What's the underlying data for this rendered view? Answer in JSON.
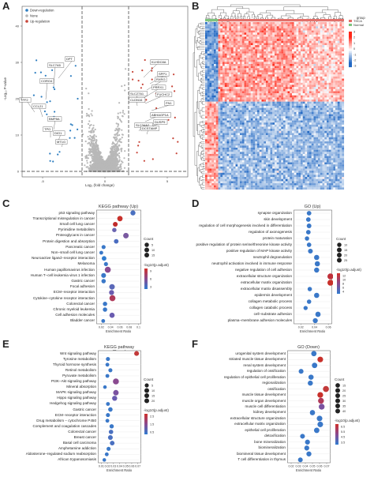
{
  "panels": {
    "A": {
      "label": "A"
    },
    "B": {
      "label": "B"
    },
    "C": {
      "label": "C"
    },
    "D": {
      "label": "D"
    },
    "E": {
      "label": "E"
    },
    "F": {
      "label": "F"
    }
  },
  "volcano": {
    "legend": [
      "Down-regulation",
      "None",
      "Up-regulation"
    ],
    "ylabel": "-Log₁₀ P-value",
    "xlabel": "Log₂ (fold change)",
    "yticks": [
      "0",
      "10",
      "20",
      "30",
      "40"
    ],
    "xticks": [
      "-5",
      "0",
      "5"
    ],
    "down_genes": [
      "DPT",
      "SLC7A5",
      "CORO4",
      "TFF2",
      "CCL21",
      "BMP8A",
      "TPO",
      "DIO1",
      "MT1G"
    ],
    "up_genes": [
      "KLHDC8A",
      "SPP1",
      "RXRG",
      "PRRX1",
      "FUCHC2",
      "SLC27A1",
      "CLDN16",
      "FN1",
      "ABHAGP1A",
      "DUSP9",
      "SLC34A2",
      "DCSTAMP"
    ],
    "colors": {
      "down": "#2e7ec0",
      "none": "#b8b8b8",
      "up": "#c8463a"
    }
  },
  "heatmap": {
    "legend_title": "group",
    "legend_items": [
      "THCA",
      "Normal"
    ],
    "scale_ticks": [
      "3",
      "2",
      "1",
      "0",
      "-1",
      "-2",
      "-3"
    ]
  },
  "enrich": {
    "C": {
      "title": "KEGG pathway (Up)",
      "xlabel": "Enrichment Ratio",
      "xticks": [
        "0.02",
        "0.04",
        "0.06",
        "0.08",
        "0.1"
      ],
      "xrange": [
        0.01,
        0.105
      ],
      "legend_count_title": "Count",
      "counts_legend": [
        "5",
        "10",
        "15"
      ],
      "legend_color_title": "-log10(p.adjust)",
      "color_ticks": [
        "9",
        "6",
        "3"
      ],
      "terms": [
        "p53 signaling pathway",
        "Transcriptional misregulation in cancer",
        "Small cell lung cancer",
        "Pyrimidine metabolism",
        "Proteoglycans in cancer",
        "Protein digestion and absorption",
        "Pancreatic cancer",
        "Non−small cell lung cancer",
        "Neuroactive ligand−receptor interaction",
        "Melanoma",
        "Human papillomavirus infection",
        "Human T−cell leukemia virus 1 infection",
        "Gastric cancer",
        "Focal adhesion",
        "ECM−receptor interaction",
        "Cytokine−cytokine receptor interaction",
        "Colorectal cancer",
        "Chronic myeloid leukemia",
        "Cell adhesion molecules",
        "Bladder cancer"
      ],
      "points": [
        {
          "x": 0.088,
          "count": 8,
          "color": "#4a70c0"
        },
        {
          "x": 0.06,
          "count": 10,
          "color": "#c8302a"
        },
        {
          "x": 0.05,
          "count": 7,
          "color": "#c02a2a"
        },
        {
          "x": 0.048,
          "count": 5,
          "color": "#6a64b0"
        },
        {
          "x": 0.073,
          "count": 11,
          "color": "#7a5aa0"
        },
        {
          "x": 0.052,
          "count": 6,
          "color": "#4a6cc0"
        },
        {
          "x": 0.025,
          "count": 4,
          "color": "#3a78c8"
        },
        {
          "x": 0.02,
          "count": 3,
          "color": "#3a78c8"
        },
        {
          "x": 0.026,
          "count": 6,
          "color": "#2f7cd0"
        },
        {
          "x": 0.03,
          "count": 4,
          "color": "#3a78c8"
        },
        {
          "x": 0.034,
          "count": 14,
          "color": "#8a4a90"
        },
        {
          "x": 0.025,
          "count": 7,
          "color": "#3a78c8"
        },
        {
          "x": 0.025,
          "count": 5,
          "color": "#3a78c8"
        },
        {
          "x": 0.043,
          "count": 11,
          "color": "#5a68b8"
        },
        {
          "x": 0.042,
          "count": 8,
          "color": "#6a5cb0"
        },
        {
          "x": 0.044,
          "count": 14,
          "color": "#b03a5a"
        },
        {
          "x": 0.028,
          "count": 5,
          "color": "#3a78c8"
        },
        {
          "x": 0.028,
          "count": 5,
          "color": "#3a78c8"
        },
        {
          "x": 0.043,
          "count": 9,
          "color": "#6a5cb0"
        },
        {
          "x": 0.024,
          "count": 3,
          "color": "#3a78c8"
        }
      ]
    },
    "D": {
      "title": "GO (Up)",
      "xlabel": "Enrichment Ratio",
      "xticks": [
        "0.02",
        "0.04",
        "0.06"
      ],
      "xrange": [
        0.01,
        0.065
      ],
      "legend_count_title": "Count",
      "counts_legend": [
        "10",
        "15",
        "20",
        "25"
      ],
      "legend_color_title": "-log10(p.adjust)",
      "color_ticks": [
        "12",
        "10",
        "8",
        "6",
        "4"
      ],
      "terms": [
        "synapse organization",
        "skin development",
        "regulation of cell morphogenesis involved in differentiation",
        "regulation of axonogenesis",
        "protein maturation",
        "positive regulation of protein serine/threonine kinase activity",
        "positive regulation of MAP kinase activity",
        "neutrophil degranulation",
        "neutrophil activation involved in immune response",
        "negative regulation of cell adhesion",
        "extracellular structure organization",
        "extracellular matrix organization",
        "extracellular matrix disassembly",
        "epidermis development",
        "collagen metabolic process",
        "collagen catabolic process",
        "cell−substrate adhesion",
        "plasma−membrane adhesion molecules"
      ],
      "points": [
        {
          "x": 0.032,
          "count": 12,
          "color": "#3a78c8"
        },
        {
          "x": 0.031,
          "count": 12,
          "color": "#3a78c8"
        },
        {
          "x": 0.032,
          "count": 13,
          "color": "#3a78c8"
        },
        {
          "x": 0.031,
          "count": 12,
          "color": "#3a78c8"
        },
        {
          "x": 0.029,
          "count": 10,
          "color": "#3a78c8"
        },
        {
          "x": 0.032,
          "count": 11,
          "color": "#3a78c8"
        },
        {
          "x": 0.034,
          "count": 14,
          "color": "#3a78c8"
        },
        {
          "x": 0.043,
          "count": 18,
          "color": "#3a78c8"
        },
        {
          "x": 0.044,
          "count": 18,
          "color": "#3a78c8"
        },
        {
          "x": 0.043,
          "count": 17,
          "color": "#3a78c8"
        },
        {
          "x": 0.063,
          "count": 28,
          "color": "#c0303a"
        },
        {
          "x": 0.063,
          "count": 28,
          "color": "#c8302a"
        },
        {
          "x": 0.033,
          "count": 10,
          "color": "#3a78c8"
        },
        {
          "x": 0.043,
          "count": 18,
          "color": "#3a78c8"
        },
        {
          "x": 0.032,
          "count": 10,
          "color": "#3a78c8"
        },
        {
          "x": 0.027,
          "count": 9,
          "color": "#3a78c8"
        },
        {
          "x": 0.045,
          "count": 19,
          "color": "#3a78c8"
        },
        {
          "x": 0.041,
          "count": 16,
          "color": "#3a78c8"
        }
      ]
    },
    "E": {
      "title": "KEGG pathway (Down)",
      "xlabel": "Enrichment Ratio",
      "xticks": [
        "0.01",
        "0.02",
        "0.03",
        "0.04",
        "0.05",
        "0.06",
        "0.07"
      ],
      "xrange": [
        0.005,
        0.075
      ],
      "legend_count_title": "Count",
      "counts_legend": [
        "5",
        "10",
        "15",
        "20"
      ],
      "legend_color_title": "-log10(p.adjust)",
      "color_ticks": [
        "2.5",
        "1.5",
        "0.5"
      ],
      "terms": [
        "Wnt signaling pathway",
        "Tyrosine metabolism",
        "Thyroid hormone synthesis",
        "Retinol metabolism",
        "Pyruvate metabolism",
        "PI3K−Akt signaling pathway",
        "Mineral absorption",
        "MAPK signaling pathway",
        "Hippo signaling pathway",
        "Hedgehog signaling pathway",
        "Gastric cancer",
        "ECM−receptor interaction",
        "Drug metabolism − cytochrome P450",
        "Complement and coagulation cascades",
        "Colorectal cancer",
        "Breast cancer",
        "Basal cell carcinoma",
        "Amphetamine addiction",
        "Aldosterone−regulated sodium reabsorption",
        "African trypanosomiasis"
      ],
      "points": [
        {
          "x": 0.068,
          "count": 9,
          "color": "#c23a3a"
        },
        {
          "x": 0.021,
          "count": 5,
          "color": "#3a78c8"
        },
        {
          "x": 0.02,
          "count": 4,
          "color": "#3a78c8"
        },
        {
          "x": 0.025,
          "count": 5,
          "color": "#3a78c8"
        },
        {
          "x": 0.02,
          "count": 4,
          "color": "#3a78c8"
        },
        {
          "x": 0.034,
          "count": 18,
          "color": "#8a4a90"
        },
        {
          "x": 0.016,
          "count": 3,
          "color": "#3a78c8"
        },
        {
          "x": 0.034,
          "count": 14,
          "color": "#7a52a0"
        },
        {
          "x": 0.032,
          "count": 11,
          "color": "#6a5cb0"
        },
        {
          "x": 0.021,
          "count": 4,
          "color": "#3a78c8"
        },
        {
          "x": 0.025,
          "count": 7,
          "color": "#3a78c8"
        },
        {
          "x": 0.021,
          "count": 5,
          "color": "#3a78c8"
        },
        {
          "x": 0.02,
          "count": 4,
          "color": "#3a78c8"
        },
        {
          "x": 0.027,
          "count": 6,
          "color": "#3a78c8"
        },
        {
          "x": 0.026,
          "count": 7,
          "color": "#4a70c0"
        },
        {
          "x": 0.025,
          "count": 9,
          "color": "#4a70c0"
        },
        {
          "x": 0.028,
          "count": 8,
          "color": "#4a70c0"
        },
        {
          "x": 0.022,
          "count": 5,
          "color": "#3a78c8"
        },
        {
          "x": 0.019,
          "count": 4,
          "color": "#3a78c8"
        },
        {
          "x": 0.015,
          "count": 3,
          "color": "#3a78c8"
        }
      ]
    },
    "F": {
      "title": "GO (Down)",
      "xlabel": "Enrichment Ratio",
      "xticks": [
        "0.02",
        "0.03",
        "0.04",
        "0.05",
        "0.06",
        "0.07"
      ],
      "xrange": [
        0.015,
        0.075
      ],
      "legend_count_title": "Count",
      "counts_legend": [
        "15",
        "20",
        "25",
        "30",
        "35",
        "40"
      ],
      "legend_color_title": "-log10(p.adjust)",
      "color_ticks": [
        "6.5",
        "5.5",
        "4.5",
        "3.5"
      ],
      "terms": [
        "urogenital system development",
        "striated muscle tissue development",
        "renal system development",
        "regulation of ossification",
        "regulation of epithelial cell proliferation",
        "regionalization",
        "ossification",
        "muscle tissue development",
        "muscle organ development",
        "muscle cell differentiation",
        "kidney development",
        "extracellular structure organization",
        "extracellular matrix organization",
        "epithelial cell proliferation",
        "detoxification",
        "bone mineralization",
        "biomineralization",
        "biomineral tissue development",
        "T cell differentiation in thymus"
      ],
      "points": [
        {
          "x": 0.052,
          "count": 25,
          "color": "#3a78c8"
        },
        {
          "x": 0.061,
          "count": 30,
          "color": "#c8302a"
        },
        {
          "x": 0.053,
          "count": 26,
          "color": "#3a78c8"
        },
        {
          "x": 0.034,
          "count": 18,
          "color": "#3a78c8"
        },
        {
          "x": 0.048,
          "count": 23,
          "color": "#3a78c8"
        },
        {
          "x": 0.047,
          "count": 22,
          "color": "#3a78c8"
        },
        {
          "x": 0.069,
          "count": 36,
          "color": "#c23a3a"
        },
        {
          "x": 0.061,
          "count": 32,
          "color": "#c8302a"
        },
        {
          "x": 0.062,
          "count": 33,
          "color": "#b03a5a"
        },
        {
          "x": 0.063,
          "count": 33,
          "color": "#7a52a0"
        },
        {
          "x": 0.05,
          "count": 24,
          "color": "#3a78c8"
        },
        {
          "x": 0.06,
          "count": 30,
          "color": "#3a78c8"
        },
        {
          "x": 0.061,
          "count": 30,
          "color": "#3a78c8"
        },
        {
          "x": 0.056,
          "count": 27,
          "color": "#3a78c8"
        },
        {
          "x": 0.036,
          "count": 18,
          "color": "#3a78c8"
        },
        {
          "x": 0.043,
          "count": 20,
          "color": "#3a78c8"
        },
        {
          "x": 0.042,
          "count": 20,
          "color": "#3a78c8"
        },
        {
          "x": 0.045,
          "count": 21,
          "color": "#3a78c8"
        },
        {
          "x": 0.033,
          "count": 17,
          "color": "#3a78c8"
        }
      ]
    }
  }
}
